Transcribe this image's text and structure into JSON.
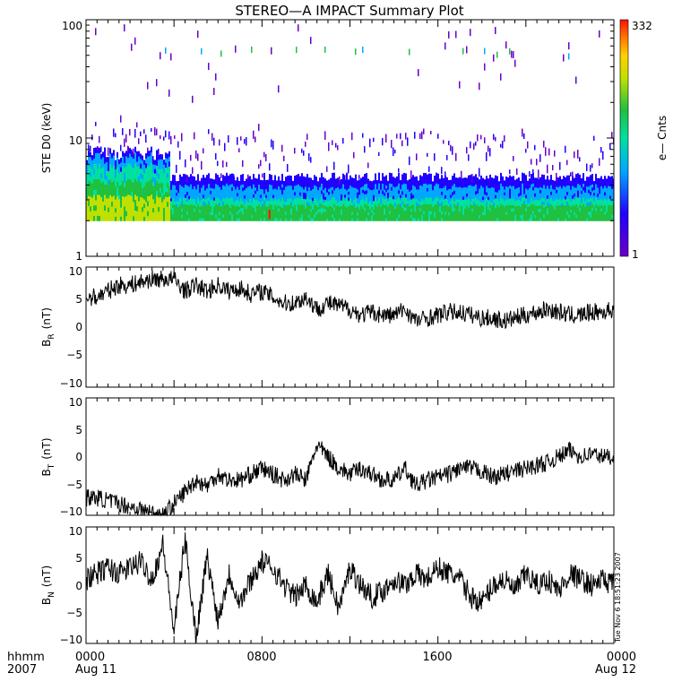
{
  "chart_data": [
    {
      "type": "heatmap",
      "title": "STEREO—A IMPACT Summary Plot",
      "ylabel": "STE D0 (keV)",
      "y_scale": "log",
      "ylim": [
        1,
        100
      ],
      "y_ticks": [
        "1",
        "10",
        "100"
      ],
      "colorbar": {
        "label": "e— Cnts",
        "min_label": "1",
        "max_label": "332",
        "range": [
          1,
          332
        ],
        "colors": [
          "#6a00c8",
          "#2000ff",
          "#00a8ff",
          "#00e0a0",
          "#20c040",
          "#c0e000",
          "#ffd000",
          "#ff7000",
          "#ff1000"
        ]
      },
      "x_range_hours": [
        0,
        24
      ],
      "energy_floor_keV": 2.0,
      "description_profile": [
        {
          "t_hours": [
            0,
            3.8
          ],
          "peak_counts_level": "high (green-yellow)",
          "top_keV": 7
        },
        {
          "t_hours": [
            3.8,
            24
          ],
          "peak_counts_level": "medium (green-cyan)",
          "top_keV": 4.5
        }
      ]
    },
    {
      "type": "line",
      "ylabel_main": "B",
      "ylabel_sub": "R",
      "ylabel_unit": "(nT)",
      "ylim": [
        -10,
        10
      ],
      "y_ticks": [
        "10",
        "5",
        "0",
        "−5",
        "−10"
      ],
      "x_hours": [
        0,
        0.5,
        1,
        1.5,
        2,
        2.5,
        3,
        3.5,
        4,
        4.5,
        5,
        5.5,
        6,
        6.5,
        7,
        7.5,
        8,
        8.5,
        9,
        9.5,
        10,
        10.5,
        11,
        11.5,
        12,
        12.5,
        13,
        13.5,
        14,
        14.5,
        15,
        15.5,
        16,
        16.5,
        17,
        17.5,
        18,
        18.5,
        19,
        19.5,
        20,
        20.5,
        21,
        21.5,
        22,
        22.5,
        23,
        23.5,
        24
      ],
      "values": [
        5,
        5,
        6,
        7,
        7,
        7.5,
        8,
        8,
        8,
        6,
        7,
        6,
        7,
        6,
        6.5,
        5.5,
        6,
        5,
        4,
        4,
        5,
        3,
        4,
        3.5,
        3,
        2,
        2.5,
        2,
        2,
        3,
        1,
        1.5,
        2,
        2.5,
        2.5,
        2,
        1.5,
        1.5,
        1,
        1.5,
        2,
        2.5,
        3,
        2.5,
        2,
        2,
        2.5,
        2.5,
        3
      ]
    },
    {
      "type": "line",
      "ylabel_main": "B",
      "ylabel_sub": "T",
      "ylabel_unit": "(nT)",
      "ylim": [
        -10,
        10
      ],
      "y_ticks": [
        "10",
        "5",
        "0",
        "−5",
        "−10"
      ],
      "x_hours": [
        0,
        0.5,
        1,
        1.5,
        2,
        2.5,
        3,
        3.5,
        4,
        4.5,
        5,
        5.5,
        6,
        6.5,
        7,
        7.5,
        8,
        8.5,
        9,
        9.5,
        10,
        10.5,
        11,
        11.5,
        12,
        12.5,
        13,
        13.5,
        14,
        14.5,
        15,
        15.5,
        16,
        16.5,
        17,
        17.5,
        18,
        18.5,
        19,
        19.5,
        20,
        20.5,
        21,
        21.5,
        22,
        22.5,
        23,
        23.5,
        24
      ],
      "values": [
        -7,
        -7,
        -7.5,
        -8,
        -8.5,
        -9,
        -9.5,
        -10,
        -8,
        -6,
        -4,
        -5,
        -3,
        -4,
        -4,
        -3,
        -2,
        -3,
        -4,
        -3,
        -4,
        2,
        0,
        -2,
        -3,
        -2,
        -3,
        -4,
        -4,
        -2,
        -5,
        -4,
        -3.5,
        -3,
        -2,
        -2,
        -2.5,
        -3.5,
        -3,
        -2.5,
        -2,
        -1.5,
        -1,
        0,
        1,
        0,
        0.5,
        0,
        0
      ]
    },
    {
      "type": "line",
      "ylabel_main": "B",
      "ylabel_sub": "N",
      "ylabel_unit": "(nT)",
      "ylim": [
        -10,
        10
      ],
      "y_ticks": [
        "10",
        "5",
        "0",
        "−5",
        "−10"
      ],
      "x_hours": [
        0,
        0.5,
        1,
        1.5,
        2,
        2.5,
        3,
        3.5,
        4,
        4.5,
        5,
        5.5,
        6,
        6.5,
        7,
        7.5,
        8,
        8.5,
        9,
        9.5,
        10,
        10.5,
        11,
        11.5,
        12,
        12.5,
        13,
        13.5,
        14,
        14.5,
        15,
        15.5,
        16,
        16.5,
        17,
        17.5,
        18,
        18.5,
        19,
        19.5,
        20,
        20.5,
        21,
        21.5,
        22,
        22.5,
        23,
        23.5,
        24
      ],
      "values": [
        1,
        2,
        3,
        2,
        3,
        4,
        1,
        7,
        -8,
        8,
        -9,
        5,
        -6,
        2,
        -3,
        1,
        4,
        3,
        0,
        -2,
        0,
        -3,
        2,
        -4,
        3,
        0,
        -2,
        -1,
        1,
        0,
        2,
        1,
        3,
        2,
        1,
        -2,
        -3,
        0,
        1,
        -1,
        2,
        0,
        1,
        -1,
        2,
        1,
        0,
        1,
        0
      ]
    }
  ],
  "x_axis": {
    "row1": [
      "0000",
      "0800",
      "1600",
      "0000"
    ],
    "row2": [
      "Aug 11",
      "",
      "",
      "Aug 12"
    ],
    "left_label_row1": "hhmm",
    "left_label_row2": "2007"
  },
  "timestamp": "Tue Nov  6 18:51:23 2007"
}
